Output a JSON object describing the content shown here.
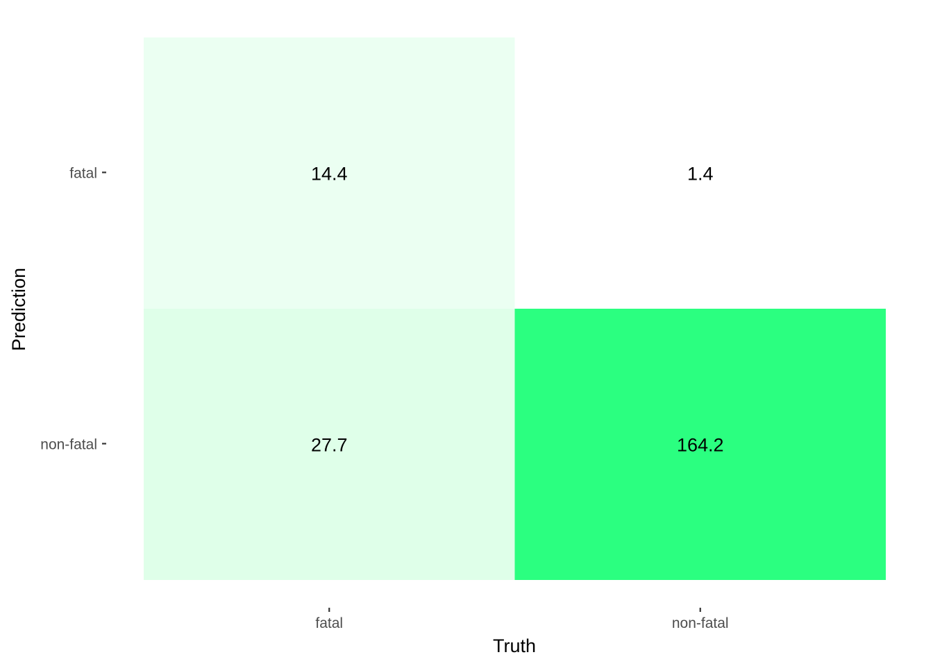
{
  "chart_data": {
    "type": "heatmap",
    "title": "",
    "xlabel": "Truth",
    "ylabel": "Prediction",
    "x_categories": [
      "fatal",
      "non-fatal"
    ],
    "y_categories": [
      "fatal",
      "non-fatal"
    ],
    "cells": [
      {
        "truth": "fatal",
        "prediction": "fatal",
        "value": 14.4,
        "label": "14.4",
        "color": "#ebfff2"
      },
      {
        "truth": "non-fatal",
        "prediction": "fatal",
        "value": 1.4,
        "label": "1.4",
        "color": "#ffffff"
      },
      {
        "truth": "fatal",
        "prediction": "non-fatal",
        "value": 27.7,
        "label": "27.7",
        "color": "#dfffe9"
      },
      {
        "truth": "non-fatal",
        "prediction": "non-fatal",
        "value": 164.2,
        "label": "164.2",
        "color": "#2bff80"
      }
    ],
    "color_scale": {
      "low": "#ffffff",
      "high": "#2bff80"
    },
    "grid": false,
    "legend": "none"
  }
}
